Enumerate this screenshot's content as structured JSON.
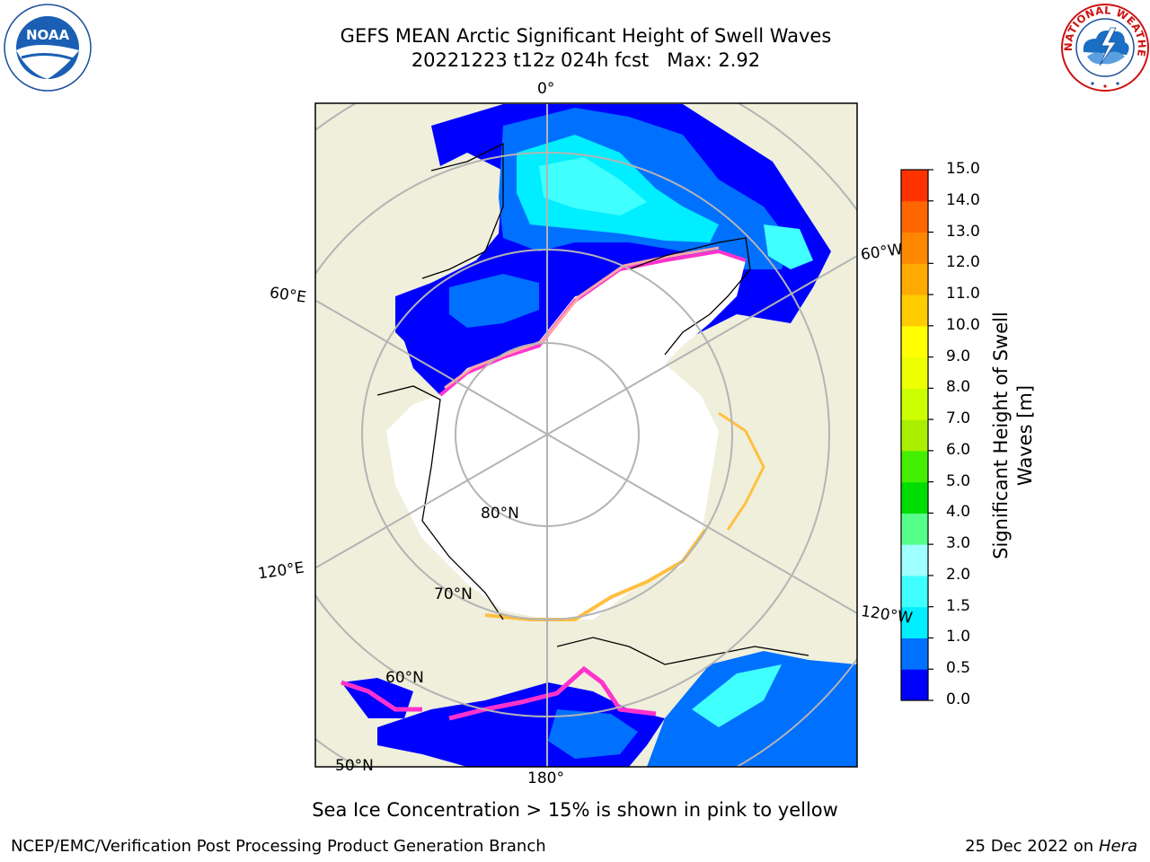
{
  "title": {
    "line1": "GEFS MEAN Arctic Significant Height of Swell Waves",
    "line2": "20221223 t12z 024h fcst   Max: 2.92"
  },
  "map": {
    "projection": "north-polar-stereographic",
    "lon_labels": [
      "0°",
      "60°E",
      "120°E",
      "180°",
      "120°W",
      "60°W"
    ],
    "lat_labels": [
      "80°N",
      "70°N",
      "60°N",
      "50°N"
    ],
    "colors": {
      "land": "#efefdc",
      "sea_ice": "#ffffff",
      "coastline": "#000000",
      "graticule": "#b4b4b4",
      "ice_edge": [
        "#ff33cc",
        "#ffa8a8",
        "#ffbf40",
        "#ffe066"
      ]
    }
  },
  "colorbar": {
    "label": "Significant Height of Swell Waves [m]",
    "ticks": [
      "0.0",
      "0.5",
      "1.0",
      "1.5",
      "2.0",
      "3.0",
      "4.0",
      "5.0",
      "6.0",
      "7.0",
      "8.0",
      "9.0",
      "10.0",
      "11.0",
      "12.0",
      "13.0",
      "14.0",
      "15.0"
    ],
    "colors": [
      "#0000ff",
      "#0070ff",
      "#00eeff",
      "#40ffff",
      "#a0ffff",
      "#55ff88",
      "#00dd00",
      "#44ee00",
      "#aaee00",
      "#ccff00",
      "#eeff00",
      "#ffff00",
      "#ffcc00",
      "#ffaa00",
      "#ff8800",
      "#ff6600",
      "#ff3300"
    ]
  },
  "caption": "Sea Ice Concentration > 15% is shown in pink to yellow",
  "footer": {
    "left": "NCEP/EMC/Verification Post Processing Product Generation Branch",
    "right_date": "25 Dec 2022 on",
    "right_machine": "Hera"
  },
  "logos": {
    "left_text": "NOAA",
    "right_text": "NATIONAL WEATHER SERVICE"
  }
}
